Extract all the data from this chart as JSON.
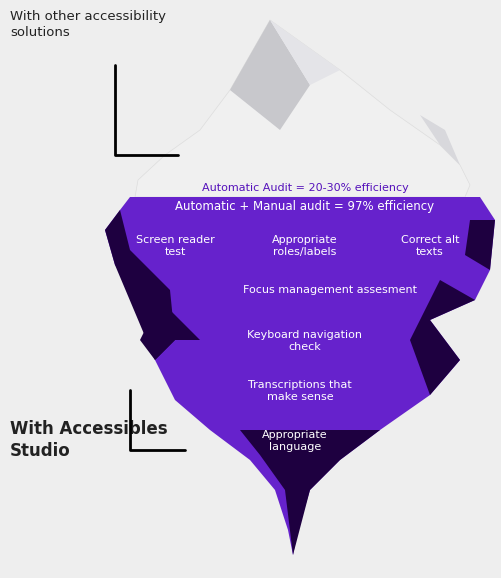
{
  "bg_color": "#eeeeee",
  "title_other": "With other accessibility\nsolutions",
  "title_studio": "With Accessibles\nStudio",
  "label_auto": "Automatic Audit = 20-30% efficiency",
  "label_manual": "Automatic + Manual audit = 97% efficiency",
  "labels_row1": [
    "Screen reader\ntest",
    "Appropriate\nroles/labels",
    "Correct alt\ntexts"
  ],
  "label_focus": "Focus management assesment",
  "label_keyboard": "Keyboard navigation\ncheck",
  "label_transcriptions": "Transcriptions that\nmake sense",
  "label_language": "Appropriate\nlanguage",
  "purple_main": "#6622cc",
  "purple_dark": "#1e0040",
  "purple_mid": "#4400aa",
  "white": "#ffffff",
  "gray_iceberg": "#f0f0f0",
  "gray_facet1": "#c8c8cc",
  "gray_facet2": "#d8d8dc",
  "gray_facet3": "#e4e4e8",
  "text_dark": "#222222",
  "text_purple": "#5511bb"
}
